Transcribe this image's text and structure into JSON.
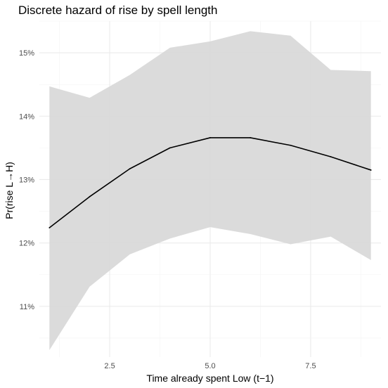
{
  "chart_data": {
    "type": "line",
    "title": "Discrete hazard of rise by spell length",
    "xlabel": "Time already spent Low (t−1)",
    "ylabel": "Pr(rise L→H)",
    "x": [
      1,
      2,
      3,
      4,
      5,
      6,
      7,
      8,
      9
    ],
    "series": [
      {
        "values": [
          12.24,
          12.73,
          13.17,
          13.5,
          13.66,
          13.66,
          13.54,
          13.36,
          13.15
        ],
        "lower": [
          10.31,
          11.31,
          11.82,
          12.07,
          12.25,
          12.14,
          11.98,
          12.1,
          11.73
        ],
        "upper": [
          14.47,
          14.29,
          14.65,
          15.08,
          15.18,
          15.34,
          15.27,
          14.73,
          14.71
        ]
      }
    ],
    "xlim": [
      0.75,
      9.25
    ],
    "ylim": [
      10.2,
      15.5
    ],
    "x_ticks": [
      2.5,
      5.0,
      7.5
    ],
    "x_tick_labels": [
      "2.5",
      "5.0",
      "7.5"
    ],
    "y_ticks": [
      11,
      12,
      13,
      14,
      15
    ],
    "y_tick_labels": [
      "11%",
      "12%",
      "13%",
      "14%",
      "15%"
    ],
    "grid": true,
    "line_color": "#000000",
    "ribbon_color": "#d9d9d9",
    "grid_major_color": "#ebebeb",
    "grid_minor_color": "#f4f4f4"
  }
}
